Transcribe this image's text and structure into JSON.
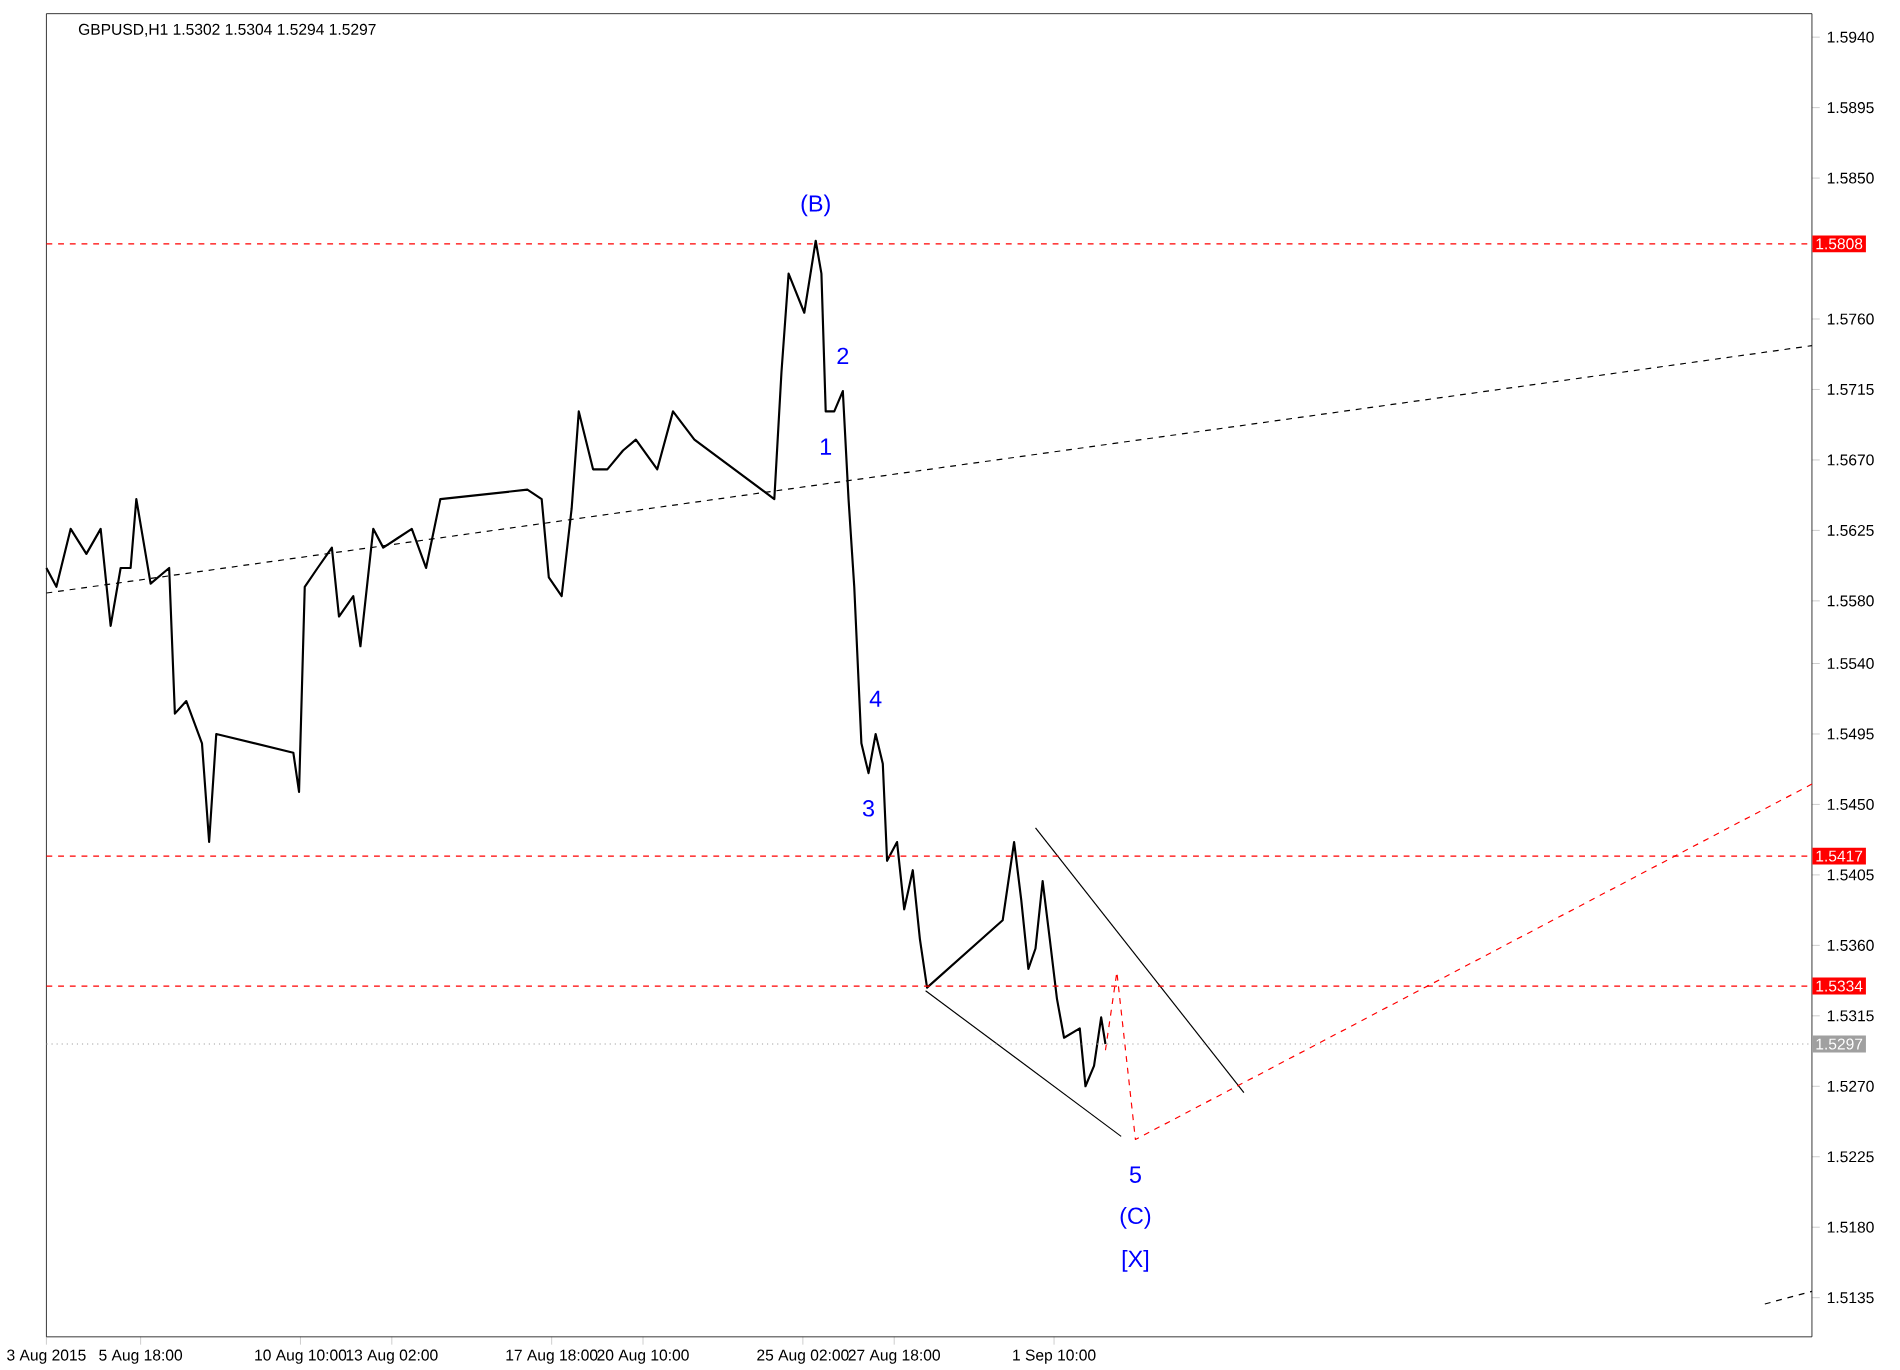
{
  "chart_data": {
    "type": "line",
    "title": "GBPUSD,H1  1.5302 1.5304 1.5294 1.5297",
    "grid": false,
    "xlim": [
      "2015-08-03T00:00",
      "2015-09-23T13:00"
    ],
    "ylim": [
      1.511,
      1.5955
    ],
    "xticks": [
      {
        "value": "2015-08-03T00:00",
        "label": "3 Aug 2015"
      },
      {
        "value": "2015-08-05T18:00",
        "label": "5 Aug 18:00"
      },
      {
        "value": "2015-08-10T10:00",
        "label": "10 Aug 10:00"
      },
      {
        "value": "2015-08-13T02:00",
        "label": "13 Aug 02:00"
      },
      {
        "value": "2015-08-17T18:00",
        "label": "17 Aug 18:00"
      },
      {
        "value": "2015-08-20T10:00",
        "label": "20 Aug 10:00"
      },
      {
        "value": "2015-08-25T02:00",
        "label": "25 Aug 02:00"
      },
      {
        "value": "2015-08-27T18:00",
        "label": "27 Aug 18:00"
      },
      {
        "value": "2015-09-01T10:00",
        "label": "1 Sep 10:00"
      }
    ],
    "yticks": [
      {
        "value": 1.5135,
        "label": "1.5135"
      },
      {
        "value": 1.518,
        "label": "1.5180"
      },
      {
        "value": 1.5225,
        "label": "1.5225"
      },
      {
        "value": 1.527,
        "label": "1.5270"
      },
      {
        "value": 1.5315,
        "label": "1.5315"
      },
      {
        "value": 1.536,
        "label": "1.5360"
      },
      {
        "value": 1.5405,
        "label": "1.5405"
      },
      {
        "value": 1.545,
        "label": "1.5450"
      },
      {
        "value": 1.5495,
        "label": "1.5495"
      },
      {
        "value": 1.554,
        "label": "1.5540"
      },
      {
        "value": 1.558,
        "label": "1.5580"
      },
      {
        "value": 1.5625,
        "label": "1.5625"
      },
      {
        "value": 1.567,
        "label": "1.5670"
      },
      {
        "value": 1.5715,
        "label": "1.5715"
      },
      {
        "value": 1.576,
        "label": "1.5760"
      },
      {
        "value": 1.5805,
        "label": null
      },
      {
        "value": 1.585,
        "label": "1.5850"
      },
      {
        "value": 1.5895,
        "label": "1.5895"
      },
      {
        "value": 1.594,
        "label": "1.5940"
      }
    ],
    "series": [
      {
        "color": "#000000",
        "line_style": "solid",
        "x": [
          "2015-08-03T00:00",
          "2015-08-03T07:00",
          "2015-08-03T17:00",
          "2015-08-04T04:00",
          "2015-08-04T14:00",
          "2015-08-04T21:00",
          "2015-08-05T04:00",
          "2015-08-05T11:00",
          "2015-08-05T15:00",
          "2015-08-06T01:00",
          "2015-08-06T14:00",
          "2015-08-06T18:00",
          "2015-08-07T02:00",
          "2015-08-07T13:00",
          "2015-08-07T18:00",
          "2015-08-07T23:00",
          "2015-08-10T05:00",
          "2015-08-10T09:00",
          "2015-08-10T13:00",
          "2015-08-10T22:00",
          "2015-08-11T08:00",
          "2015-08-11T13:00",
          "2015-08-11T23:00",
          "2015-08-12T04:00",
          "2015-08-12T13:00",
          "2015-08-12T20:00",
          "2015-08-13T06:00",
          "2015-08-13T16:00",
          "2015-08-14T02:00",
          "2015-08-14T12:00",
          "2015-08-17T01:00",
          "2015-08-17T11:00",
          "2015-08-17T16:00",
          "2015-08-18T01:00",
          "2015-08-18T08:00",
          "2015-08-18T13:00",
          "2015-08-18T23:00",
          "2015-08-19T09:00",
          "2015-08-19T20:00",
          "2015-08-20T05:00",
          "2015-08-20T20:00",
          "2015-08-21T07:00",
          "2015-08-21T22:00",
          "2015-08-24T06:00",
          "2015-08-24T11:00",
          "2015-08-24T16:00",
          "2015-08-25T03:00",
          "2015-08-25T11:00",
          "2015-08-25T15:00",
          "2015-08-25T18:00",
          "2015-08-26T00:00",
          "2015-08-26T06:00",
          "2015-08-26T10:00",
          "2015-08-26T14:00",
          "2015-08-26T19:00",
          "2015-08-27T00:00",
          "2015-08-27T05:00",
          "2015-08-27T10:00",
          "2015-08-27T13:00",
          "2015-08-27T20:00",
          "2015-08-28T01:00",
          "2015-08-28T07:00",
          "2015-08-28T12:00",
          "2015-08-28T17:00",
          "2015-08-30T22:00",
          "2015-08-31T06:00",
          "2015-08-31T11:00",
          "2015-08-31T16:00",
          "2015-08-31T21:00",
          "2015-09-01T02:00",
          "2015-09-01T07:00",
          "2015-09-01T12:00",
          "2015-09-01T17:00",
          "2015-09-02T04:00",
          "2015-09-02T08:00",
          "2015-09-02T14:00",
          "2015-09-02T19:00",
          "2015-09-02T22:00"
        ],
        "values": [
          1.5601,
          1.5589,
          1.5626,
          1.561,
          1.5626,
          1.5564,
          1.5601,
          1.5601,
          1.5645,
          1.5591,
          1.5601,
          1.5508,
          1.5516,
          1.5489,
          1.5426,
          1.5495,
          1.5483,
          1.5458,
          1.5589,
          1.5601,
          1.5614,
          1.557,
          1.5583,
          1.5551,
          1.5626,
          1.5614,
          1.562,
          1.5626,
          1.5601,
          1.5645,
          1.5651,
          1.5645,
          1.5595,
          1.5583,
          1.5639,
          1.5701,
          1.5664,
          1.5664,
          1.5676,
          1.5683,
          1.5664,
          1.5701,
          1.5683,
          1.5645,
          1.5726,
          1.5789,
          1.5764,
          1.581,
          1.5789,
          1.5701,
          1.5701,
          1.5714,
          1.5645,
          1.5589,
          1.5489,
          1.547,
          1.5495,
          1.5476,
          1.5414,
          1.5426,
          1.5383,
          1.5408,
          1.5364,
          1.5333,
          1.5376,
          1.5426,
          1.5389,
          1.5345,
          1.5358,
          1.5401,
          1.5364,
          1.5326,
          1.5301,
          1.5307,
          1.527,
          1.5283,
          1.5314,
          1.5297
        ]
      },
      {
        "color": "#000000",
        "line_style": "dashed",
        "x": [
          "2015-08-03T00:00",
          "2015-09-23T13:00"
        ],
        "values": [
          1.5585,
          1.5743
        ]
      },
      {
        "color": "#000000",
        "line_style": "solid",
        "x": [
          "2015-08-31T21:00",
          "2015-09-06T23:00"
        ],
        "values": [
          1.5435,
          1.5266
        ]
      },
      {
        "color": "#000000",
        "line_style": "solid",
        "x": [
          "2015-08-28T16:00",
          "2015-09-03T09:00"
        ],
        "values": [
          1.5331,
          1.5238
        ]
      },
      {
        "color": "#ff0000",
        "line_style": "dashed",
        "x": [
          "2015-09-02T22:00",
          "2015-09-03T06:00",
          "2015-09-03T19:00",
          "2015-09-23T13:00"
        ],
        "values": [
          1.5293,
          1.5343,
          1.5236,
          1.5463
        ]
      },
      {
        "color": "#000000",
        "line_style": "dashed",
        "x": [
          "2015-09-22T04:00",
          "2015-09-23T13:00"
        ],
        "values": [
          1.5131,
          1.5139
        ]
      }
    ],
    "ref_lines": [
      {
        "axis": "y",
        "value": 1.5808,
        "label": "1.5808",
        "color": "#ff0000",
        "line_style": "dashed"
      },
      {
        "axis": "y",
        "value": 1.5417,
        "label": "1.5417",
        "color": "#ff0000",
        "line_style": "dashed"
      },
      {
        "axis": "y",
        "value": 1.5334,
        "label": "1.5334",
        "color": "#ff0000",
        "line_style": "dashed"
      },
      {
        "axis": "y",
        "value": 1.5297,
        "label": "1.5297",
        "color": "#a0a0a0",
        "line_style": "dotted"
      }
    ],
    "annotations": [
      {
        "text": "(B)",
        "x": "2015-08-25T11:00",
        "y": 1.581
      },
      {
        "text": "2",
        "x": "2015-08-26T06:00",
        "y": 1.5714
      },
      {
        "text": "1",
        "x": "2015-08-25T18:00",
        "y": 1.5701
      },
      {
        "text": "4",
        "x": "2015-08-27T05:00",
        "y": 1.5495
      },
      {
        "text": "3",
        "x": "2015-08-27T00:00",
        "y": 1.547
      },
      {
        "text": "5",
        "x": "2015-09-03T19:00",
        "y": 1.5236
      },
      "(C)",
      "[X]"
    ]
  }
}
